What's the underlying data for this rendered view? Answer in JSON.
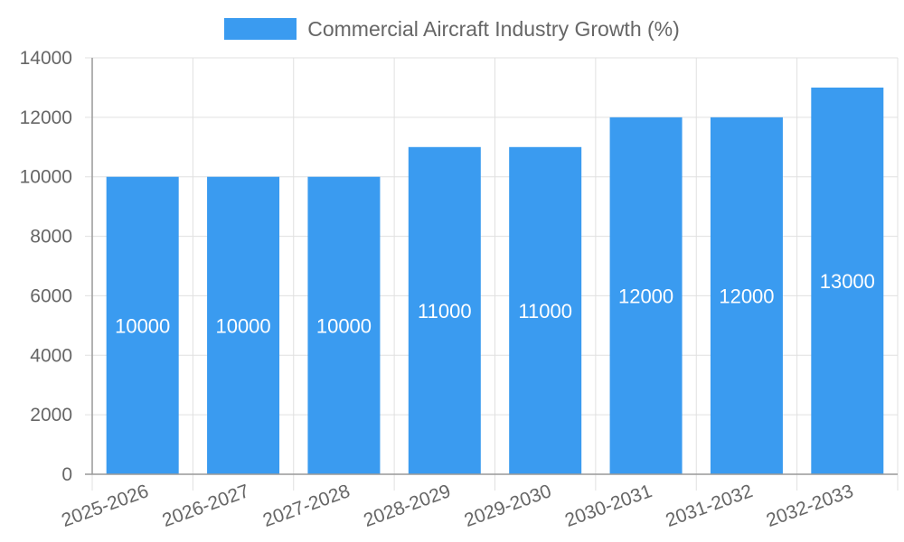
{
  "chart_data": {
    "type": "bar",
    "legend_placement": "top-center",
    "grid": true,
    "categories": [
      "2025-2026",
      "2026-2027",
      "2027-2028",
      "2028-2029",
      "2029-2030",
      "2030-2031",
      "2031-2032",
      "2032-2033"
    ],
    "series": [
      {
        "name": "Commercial Aircraft Industry Growth (%)",
        "color": "#3a9bf0",
        "values": [
          10000,
          10000,
          10000,
          11000,
          11000,
          12000,
          12000,
          13000
        ]
      }
    ],
    "ylim": [
      0,
      14000
    ],
    "yticks": [
      0,
      2000,
      4000,
      6000,
      8000,
      10000,
      12000,
      14000
    ],
    "data_labels": true
  }
}
